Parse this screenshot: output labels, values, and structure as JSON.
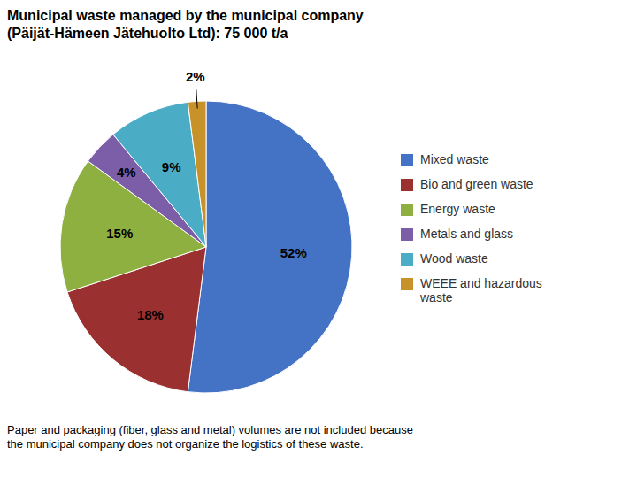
{
  "chart_data": {
    "type": "pie",
    "title": "Municipal waste managed by the municipal company\n(Päijät-Hämeen Jätehuolto Ltd): 75 000 t/a",
    "categories": [
      "Mixed waste",
      "Bio and green waste",
      "Energy waste",
      "Metals and glass",
      "Wood waste",
      "WEEE and hazardous\nwaste"
    ],
    "values": [
      52,
      18,
      15,
      4,
      9,
      2
    ],
    "value_labels": [
      "52%",
      "18%",
      "15%",
      "4%",
      "9%",
      "2%"
    ],
    "colors": [
      "#4472C4",
      "#9B3030",
      "#8DB040",
      "#7B5EA7",
      "#4BACC6",
      "#C8922A"
    ],
    "data_labels": true,
    "legend": "right",
    "annotation": "Paper and packaging (fiber, glass and metal) volumes are not included because\nthe municipal company does not organize the logistics of these waste."
  }
}
